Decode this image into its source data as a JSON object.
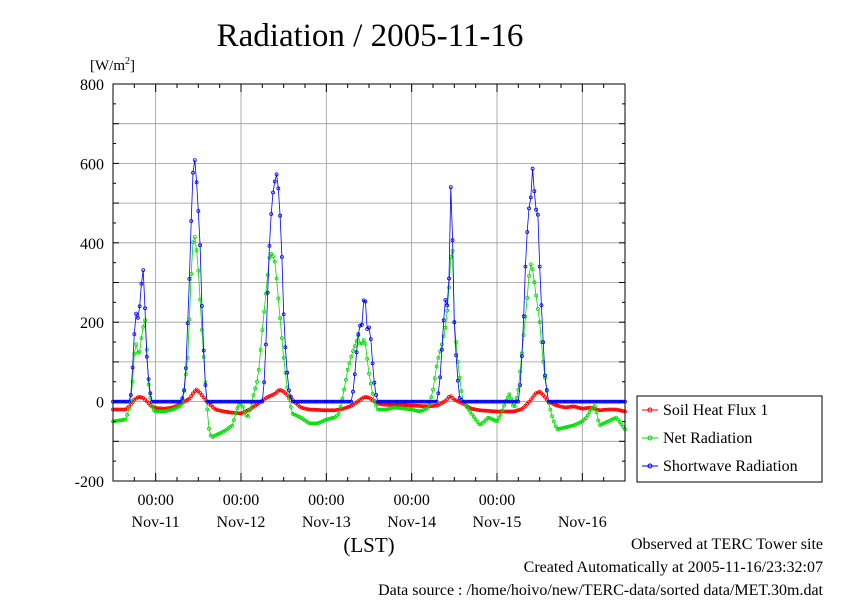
{
  "chart_data": {
    "type": "line",
    "title": "Radiation / 2005-11-16",
    "ylabel": "[W/m2]",
    "ylabel_base": "[W/m",
    "ylabel_sup": "2",
    "ylabel_tail": "]",
    "xlabel": "(LST)",
    "ylim": [
      -200,
      800
    ],
    "yticks": [
      "-200",
      "0",
      "200",
      "400",
      "600",
      "800"
    ],
    "x_day_labels": [
      "Nov-11",
      "Nov-12",
      "Nov-13",
      "Nov-14",
      "Nov-15",
      "Nov-16"
    ],
    "x_time_labels": [
      "00:00",
      "00:00",
      "00:00",
      "00:00",
      "00:00"
    ],
    "x_range_days": [
      10.5,
      16.5
    ],
    "grid": true,
    "legend_position": "right",
    "series": [
      {
        "name": "Soil Heat Flux 1",
        "color": "#ff0000",
        "points": [
          [
            10.5,
            -20
          ],
          [
            10.65,
            -20
          ],
          [
            10.7,
            -10
          ],
          [
            10.75,
            5
          ],
          [
            10.8,
            12
          ],
          [
            10.85,
            10
          ],
          [
            10.9,
            0
          ],
          [
            10.95,
            -12
          ],
          [
            11.0,
            -16
          ],
          [
            11.1,
            -18
          ],
          [
            11.2,
            -15
          ],
          [
            11.3,
            -5
          ],
          [
            11.4,
            8
          ],
          [
            11.45,
            25
          ],
          [
            11.48,
            30
          ],
          [
            11.52,
            22
          ],
          [
            11.6,
            0
          ],
          [
            11.7,
            -20
          ],
          [
            11.8,
            -25
          ],
          [
            11.9,
            -28
          ],
          [
            12.0,
            -30
          ],
          [
            12.1,
            -20
          ],
          [
            12.2,
            -5
          ],
          [
            12.3,
            10
          ],
          [
            12.4,
            20
          ],
          [
            12.45,
            30
          ],
          [
            12.5,
            25
          ],
          [
            12.6,
            5
          ],
          [
            12.7,
            -15
          ],
          [
            12.8,
            -20
          ],
          [
            13.0,
            -22
          ],
          [
            13.1,
            -22
          ],
          [
            13.2,
            -18
          ],
          [
            13.3,
            -10
          ],
          [
            13.4,
            5
          ],
          [
            13.45,
            12
          ],
          [
            13.5,
            10
          ],
          [
            13.6,
            -5
          ],
          [
            13.7,
            -8
          ],
          [
            13.8,
            -8
          ],
          [
            14.0,
            -10
          ],
          [
            14.2,
            -12
          ],
          [
            14.3,
            -10
          ],
          [
            14.4,
            2
          ],
          [
            14.45,
            15
          ],
          [
            14.5,
            5
          ],
          [
            14.6,
            -5
          ],
          [
            14.7,
            -18
          ],
          [
            14.8,
            -22
          ],
          [
            15.0,
            -25
          ],
          [
            15.2,
            -25
          ],
          [
            15.3,
            -18
          ],
          [
            15.4,
            5
          ],
          [
            15.45,
            20
          ],
          [
            15.5,
            25
          ],
          [
            15.55,
            15
          ],
          [
            15.6,
            0
          ],
          [
            15.7,
            -10
          ],
          [
            15.8,
            -15
          ],
          [
            15.9,
            -12
          ],
          [
            16.0,
            -18
          ],
          [
            16.1,
            -15
          ],
          [
            16.2,
            -22
          ],
          [
            16.3,
            -20
          ],
          [
            16.4,
            -20
          ],
          [
            16.5,
            -25
          ]
        ]
      },
      {
        "name": "Net Radiation",
        "color": "#00dd00",
        "points": [
          [
            10.5,
            -50
          ],
          [
            10.65,
            -45
          ],
          [
            10.7,
            -10
          ],
          [
            10.72,
            20
          ],
          [
            10.75,
            120
          ],
          [
            10.78,
            155
          ],
          [
            10.8,
            100
          ],
          [
            10.82,
            140
          ],
          [
            10.85,
            185
          ],
          [
            10.87,
            200
          ],
          [
            10.88,
            210
          ],
          [
            10.9,
            110
          ],
          [
            10.92,
            30
          ],
          [
            10.95,
            -5
          ],
          [
            10.97,
            -20
          ],
          [
            11.0,
            -25
          ],
          [
            11.1,
            -25
          ],
          [
            11.2,
            -20
          ],
          [
            11.3,
            -10
          ],
          [
            11.32,
            0
          ],
          [
            11.35,
            60
          ],
          [
            11.38,
            120
          ],
          [
            11.4,
            230
          ],
          [
            11.42,
            340
          ],
          [
            11.44,
            410
          ],
          [
            11.46,
            415
          ],
          [
            11.48,
            380
          ],
          [
            11.5,
            330
          ],
          [
            11.52,
            260
          ],
          [
            11.55,
            150
          ],
          [
            11.58,
            60
          ],
          [
            11.6,
            -10
          ],
          [
            11.63,
            -80
          ],
          [
            11.66,
            -90
          ],
          [
            11.7,
            -85
          ],
          [
            11.8,
            -75
          ],
          [
            11.9,
            -60
          ],
          [
            11.95,
            -20
          ],
          [
            12.0,
            0
          ],
          [
            12.05,
            -30
          ],
          [
            12.08,
            -40
          ],
          [
            12.1,
            -25
          ],
          [
            12.15,
            20
          ],
          [
            12.2,
            60
          ],
          [
            12.25,
            180
          ],
          [
            12.3,
            290
          ],
          [
            12.33,
            360
          ],
          [
            12.36,
            375
          ],
          [
            12.4,
            350
          ],
          [
            12.45,
            230
          ],
          [
            12.5,
            110
          ],
          [
            12.55,
            20
          ],
          [
            12.6,
            -30
          ],
          [
            12.7,
            -40
          ],
          [
            12.8,
            -55
          ],
          [
            12.9,
            -55
          ],
          [
            13.0,
            -45
          ],
          [
            13.1,
            -40
          ],
          [
            13.15,
            -30
          ],
          [
            13.2,
            20
          ],
          [
            13.25,
            80
          ],
          [
            13.3,
            120
          ],
          [
            13.35,
            150
          ],
          [
            13.38,
            170
          ],
          [
            13.4,
            140
          ],
          [
            13.45,
            160
          ],
          [
            13.5,
            70
          ],
          [
            13.55,
            10
          ],
          [
            13.6,
            -20
          ],
          [
            13.7,
            -20
          ],
          [
            13.8,
            -15
          ],
          [
            14.0,
            -20
          ],
          [
            14.1,
            -25
          ],
          [
            14.2,
            -15
          ],
          [
            14.25,
            30
          ],
          [
            14.3,
            100
          ],
          [
            14.35,
            140
          ],
          [
            14.4,
            190
          ],
          [
            14.43,
            260
          ],
          [
            14.46,
            370
          ],
          [
            14.48,
            380
          ],
          [
            14.5,
            200
          ],
          [
            14.55,
            80
          ],
          [
            14.6,
            0
          ],
          [
            14.7,
            -30
          ],
          [
            14.8,
            -60
          ],
          [
            14.9,
            -40
          ],
          [
            15.0,
            -50
          ],
          [
            15.05,
            -30
          ],
          [
            15.1,
            0
          ],
          [
            15.15,
            20
          ],
          [
            15.2,
            -20
          ],
          [
            15.25,
            30
          ],
          [
            15.3,
            140
          ],
          [
            15.35,
            250
          ],
          [
            15.38,
            330
          ],
          [
            15.4,
            350
          ],
          [
            15.42,
            330
          ],
          [
            15.45,
            280
          ],
          [
            15.5,
            200
          ],
          [
            15.55,
            80
          ],
          [
            15.6,
            0
          ],
          [
            15.65,
            -40
          ],
          [
            15.7,
            -70
          ],
          [
            15.8,
            -65
          ],
          [
            15.9,
            -60
          ],
          [
            16.0,
            -50
          ],
          [
            16.05,
            -40
          ],
          [
            16.1,
            -20
          ],
          [
            16.15,
            -10
          ],
          [
            16.2,
            -60
          ],
          [
            16.3,
            -50
          ],
          [
            16.4,
            -40
          ],
          [
            16.5,
            -70
          ]
        ]
      },
      {
        "name": "Shortwave Radiation",
        "color": "#0000ff",
        "points": [
          [
            10.5,
            0
          ],
          [
            10.7,
            0
          ],
          [
            10.72,
            40
          ],
          [
            10.74,
            140
          ],
          [
            10.76,
            200
          ],
          [
            10.78,
            240
          ],
          [
            10.8,
            190
          ],
          [
            10.82,
            270
          ],
          [
            10.84,
            310
          ],
          [
            10.86,
            340
          ],
          [
            10.88,
            200
          ],
          [
            10.9,
            90
          ],
          [
            10.92,
            50
          ],
          [
            10.95,
            0
          ],
          [
            11.0,
            0
          ],
          [
            11.3,
            0
          ],
          [
            11.33,
            20
          ],
          [
            11.36,
            100
          ],
          [
            11.38,
            230
          ],
          [
            11.4,
            330
          ],
          [
            11.42,
            480
          ],
          [
            11.44,
            590
          ],
          [
            11.46,
            610
          ],
          [
            11.48,
            550
          ],
          [
            11.5,
            480
          ],
          [
            11.52,
            400
          ],
          [
            11.54,
            250
          ],
          [
            11.56,
            140
          ],
          [
            11.58,
            50
          ],
          [
            11.6,
            0
          ],
          [
            12.0,
            0
          ],
          [
            12.25,
            0
          ],
          [
            12.28,
            70
          ],
          [
            12.31,
            260
          ],
          [
            12.34,
            430
          ],
          [
            12.37,
            520
          ],
          [
            12.4,
            560
          ],
          [
            12.42,
            575
          ],
          [
            12.45,
            510
          ],
          [
            12.48,
            360
          ],
          [
            12.5,
            220
          ],
          [
            12.53,
            100
          ],
          [
            12.56,
            30
          ],
          [
            12.6,
            0
          ],
          [
            13.0,
            0
          ],
          [
            13.3,
            0
          ],
          [
            13.33,
            60
          ],
          [
            13.36,
            140
          ],
          [
            13.39,
            200
          ],
          [
            13.41,
            170
          ],
          [
            13.43,
            240
          ],
          [
            13.45,
            280
          ],
          [
            13.48,
            180
          ],
          [
            13.51,
            190
          ],
          [
            13.54,
            100
          ],
          [
            13.57,
            30
          ],
          [
            13.6,
            0
          ],
          [
            14.0,
            0
          ],
          [
            14.3,
            0
          ],
          [
            14.33,
            50
          ],
          [
            14.36,
            150
          ],
          [
            14.39,
            260
          ],
          [
            14.42,
            240
          ],
          [
            14.44,
            320
          ],
          [
            14.46,
            560
          ],
          [
            14.48,
            400
          ],
          [
            14.5,
            200
          ],
          [
            14.53,
            80
          ],
          [
            14.56,
            10
          ],
          [
            14.6,
            0
          ],
          [
            15.0,
            0
          ],
          [
            15.25,
            0
          ],
          [
            15.28,
            60
          ],
          [
            15.31,
            200
          ],
          [
            15.34,
            380
          ],
          [
            15.37,
            480
          ],
          [
            15.4,
            520
          ],
          [
            15.42,
            600
          ],
          [
            15.44,
            520
          ],
          [
            15.46,
            480
          ],
          [
            15.48,
            470
          ],
          [
            15.5,
            340
          ],
          [
            15.53,
            200
          ],
          [
            15.56,
            70
          ],
          [
            15.6,
            0
          ],
          [
            16.0,
            0
          ],
          [
            16.5,
            0
          ]
        ]
      }
    ]
  },
  "footer": {
    "observed": "Observed at TERC Tower site",
    "created": "Created Automatically at 2005-11-16/23:32:07",
    "source": "Data source : /home/hoivo/new/TERC-data/sorted data/MET.30m.dat"
  }
}
